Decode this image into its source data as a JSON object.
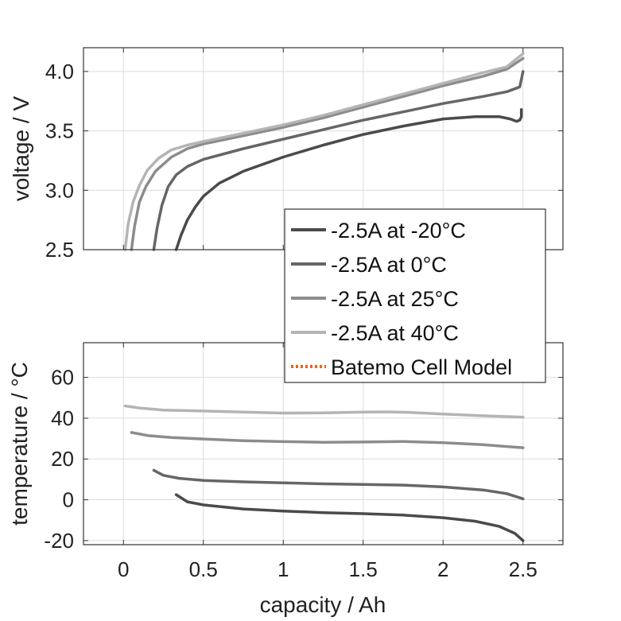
{
  "chart_data": [
    {
      "type": "line",
      "ylabel": "voltage / V",
      "xlim": [
        -0.25,
        2.75
      ],
      "ylim": [
        2.5,
        4.2
      ],
      "yticks": [
        2.5,
        3.0,
        3.5,
        4.0
      ],
      "ytick_labels": [
        "2.5",
        "3.0",
        "3.5",
        "4.0"
      ],
      "xticks": [
        0,
        0.5,
        1,
        1.5,
        2,
        2.5
      ],
      "grid": true,
      "series": [
        {
          "name": "-2.5A at -20°C",
          "color": "#4a4a4a",
          "x": [
            0.33,
            0.36,
            0.4,
            0.45,
            0.5,
            0.6,
            0.75,
            1.0,
            1.25,
            1.5,
            1.75,
            2.0,
            2.2,
            2.35,
            2.42,
            2.46,
            2.48,
            2.49,
            2.49
          ],
          "y": [
            2.5,
            2.62,
            2.75,
            2.86,
            2.95,
            3.06,
            3.16,
            3.28,
            3.38,
            3.47,
            3.54,
            3.6,
            3.62,
            3.62,
            3.6,
            3.58,
            3.59,
            3.62,
            3.68
          ]
        },
        {
          "name": "-2.5A at 0°C",
          "color": "#666666",
          "x": [
            0.19,
            0.21,
            0.24,
            0.28,
            0.33,
            0.4,
            0.5,
            0.75,
            1.0,
            1.25,
            1.5,
            1.75,
            2.0,
            2.25,
            2.4,
            2.48,
            2.5
          ],
          "y": [
            2.5,
            2.68,
            2.87,
            3.03,
            3.13,
            3.2,
            3.26,
            3.35,
            3.43,
            3.51,
            3.59,
            3.66,
            3.73,
            3.79,
            3.83,
            3.87,
            4.0
          ]
        },
        {
          "name": "-2.5A at 25°C",
          "color": "#8c8c8c",
          "x": [
            0.05,
            0.07,
            0.1,
            0.14,
            0.2,
            0.3,
            0.4,
            0.5,
            0.75,
            1.0,
            1.25,
            1.5,
            1.75,
            2.0,
            2.25,
            2.4,
            2.5
          ],
          "y": [
            2.5,
            2.7,
            2.9,
            3.03,
            3.16,
            3.28,
            3.35,
            3.39,
            3.46,
            3.53,
            3.61,
            3.7,
            3.79,
            3.88,
            3.96,
            4.02,
            4.11
          ]
        },
        {
          "name": "-2.5A at 40°C",
          "color": "#b4b4b4",
          "x": [
            0.01,
            0.03,
            0.06,
            0.1,
            0.15,
            0.22,
            0.3,
            0.4,
            0.5,
            0.75,
            1.0,
            1.25,
            1.5,
            1.75,
            2.0,
            2.25,
            2.4,
            2.5
          ],
          "y": [
            2.5,
            2.72,
            2.9,
            3.04,
            3.17,
            3.27,
            3.34,
            3.38,
            3.41,
            3.48,
            3.55,
            3.63,
            3.72,
            3.81,
            3.9,
            3.99,
            4.04,
            4.15
          ]
        }
      ]
    },
    {
      "type": "line",
      "xlabel": "capacity / Ah",
      "ylabel": "temperature / °C",
      "xlim": [
        -0.25,
        2.75
      ],
      "ylim": [
        -22,
        77
      ],
      "yticks": [
        -20,
        0,
        20,
        40,
        60
      ],
      "ytick_labels": [
        "-20",
        "0",
        "20",
        "40",
        "60"
      ],
      "xticks": [
        0,
        0.5,
        1,
        1.5,
        2,
        2.5
      ],
      "xtick_labels": [
        "0",
        "0.5",
        "1",
        "1.5",
        "2",
        "2.5"
      ],
      "grid": true,
      "series": [
        {
          "name": "-2.5A at -20°C",
          "color": "#4a4a4a",
          "x": [
            0.33,
            0.4,
            0.5,
            0.75,
            1.0,
            1.25,
            1.5,
            1.75,
            2.0,
            2.2,
            2.35,
            2.45,
            2.5
          ],
          "y": [
            2.5,
            -1,
            -2.5,
            -4.5,
            -5.5,
            -6.3,
            -6.8,
            -7.5,
            -8.8,
            -10.5,
            -13,
            -16.5,
            -20
          ]
        },
        {
          "name": "-2.5A at 0°C",
          "color": "#666666",
          "x": [
            0.19,
            0.25,
            0.35,
            0.5,
            0.75,
            1.0,
            1.25,
            1.5,
            1.75,
            2.0,
            2.25,
            2.4,
            2.5
          ],
          "y": [
            14.5,
            12,
            10.5,
            9.5,
            8.8,
            8.3,
            7.8,
            7.5,
            7.2,
            6.3,
            4.8,
            3,
            0.5
          ]
        },
        {
          "name": "-2.5A at 25°C",
          "color": "#8c8c8c",
          "x": [
            0.05,
            0.15,
            0.3,
            0.5,
            0.75,
            1.0,
            1.25,
            1.5,
            1.75,
            2.0,
            2.25,
            2.5
          ],
          "y": [
            33,
            31.5,
            30.5,
            29.8,
            29,
            28.5,
            28.2,
            28.3,
            28.6,
            28,
            27,
            25.5
          ]
        },
        {
          "name": "-2.5A at 40°C",
          "color": "#b4b4b4",
          "x": [
            0.01,
            0.1,
            0.25,
            0.5,
            0.75,
            1.0,
            1.25,
            1.5,
            1.65,
            1.8,
            2.0,
            2.25,
            2.5
          ],
          "y": [
            46,
            45,
            44,
            43.5,
            43,
            42.5,
            42.6,
            43,
            43.1,
            42.8,
            42,
            41.2,
            40.5
          ]
        }
      ]
    }
  ],
  "legend": {
    "placement": "center-right",
    "entries": [
      {
        "label": "-2.5A at -20°C",
        "color": "#4a4a4a",
        "style": "solid"
      },
      {
        "label": "-2.5A at 0°C",
        "color": "#666666",
        "style": "solid"
      },
      {
        "label": "-2.5A at 25°C",
        "color": "#8c8c8c",
        "style": "solid"
      },
      {
        "label": "-2.5A at 40°C",
        "color": "#b4b4b4",
        "style": "solid"
      },
      {
        "label": "Batemo Cell Model",
        "color": "#e8641e",
        "style": "dotted"
      }
    ]
  }
}
